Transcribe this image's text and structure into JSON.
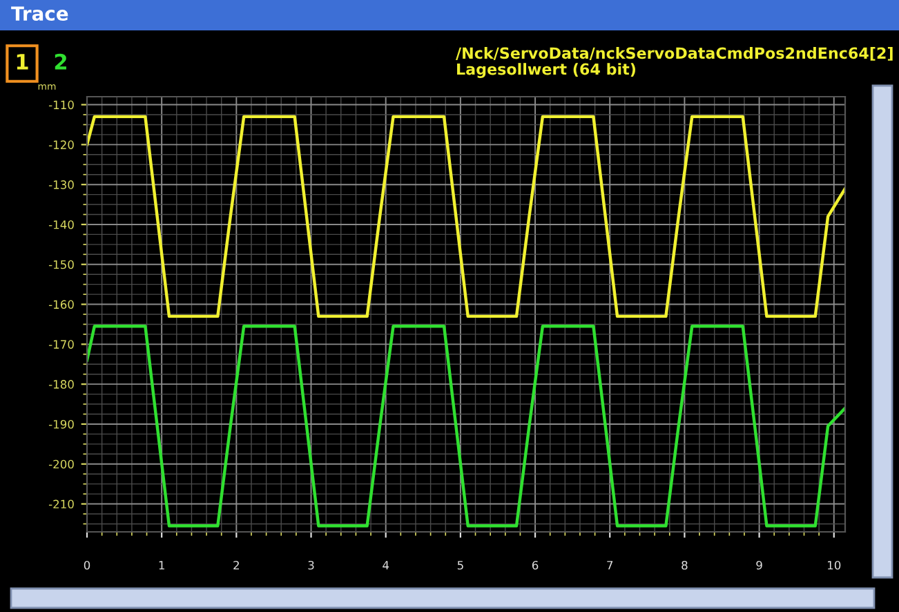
{
  "chart_data": {
    "type": "line",
    "title": "Trace",
    "subtitle": "/Nck/ServoData/nckServoDataCmdPos2ndEnc64[2]\nLagesollwert (64 bit)",
    "ylabel": "mm",
    "x": [
      0,
      0.1,
      0.78,
      0.94,
      1.1,
      1.75,
      1.92,
      2.1,
      2.78,
      2.94,
      3.1,
      3.75,
      3.92,
      4.1,
      4.78,
      4.94,
      5.1,
      5.75,
      5.92,
      6.1,
      6.78,
      6.94,
      7.1,
      7.75,
      7.92,
      8.1,
      8.78,
      8.94,
      9.1,
      9.75,
      9.92,
      10.15
    ],
    "series": [
      {
        "name": "1",
        "color": "#f0f030",
        "values": [
          -120,
          -113,
          -113,
          -138,
          -163,
          -163,
          -138,
          -113,
          -113,
          -138,
          -163,
          -163,
          -138,
          -113,
          -113,
          -138,
          -163,
          -163,
          -138,
          -113,
          -113,
          -138,
          -163,
          -163,
          -138,
          -113,
          -113,
          -138,
          -163,
          -163,
          -138,
          -131
        ]
      },
      {
        "name": "2",
        "color": "#30e030",
        "values": [
          -174,
          -165.5,
          -165.5,
          -190.5,
          -215.5,
          -215.5,
          -190.5,
          -165.5,
          -165.5,
          -190.5,
          -215.5,
          -215.5,
          -190.5,
          -165.5,
          -165.5,
          -190.5,
          -215.5,
          -215.5,
          -190.5,
          -165.5,
          -165.5,
          -190.5,
          -215.5,
          -215.5,
          -190.5,
          -165.5,
          -165.5,
          -190.5,
          -215.5,
          -215.5,
          -190.5,
          -186
        ]
      }
    ],
    "xlim": [
      0,
      10.15
    ],
    "xticks": [
      0,
      1,
      2,
      3,
      4,
      5,
      6,
      7,
      8,
      9,
      10
    ],
    "ylim": [
      -217,
      -108
    ],
    "yticks": [
      -110,
      -120,
      -130,
      -140,
      -150,
      -160,
      -170,
      -180,
      -190,
      -200,
      -210
    ],
    "grid": true,
    "legend": "top left",
    "marker": "none",
    "line_style": "solid"
  }
}
